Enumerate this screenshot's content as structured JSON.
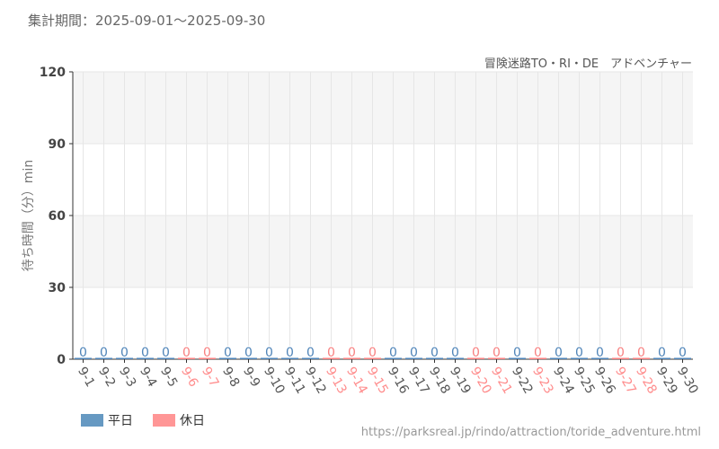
{
  "header": {
    "period": "集計期間：2025-09-01～2025-09-30",
    "subtitle": "冒険迷路TO・RI・DE　アドベンチャー"
  },
  "legend": [
    {
      "label": "平日",
      "color": "#6699c2"
    },
    {
      "label": "休日",
      "color": "#ff9696"
    }
  ],
  "source": "https://parksreal.jp/rindo/attraction/toride_adventure.html",
  "colors": {
    "weekday": "#4f84b8",
    "holiday": "#f88080",
    "weekday_label": "#555555",
    "holiday_label": "#ff8c8c"
  },
  "chart_data": {
    "type": "bar",
    "title": "",
    "xlabel": "",
    "ylabel": "待ち時間（分）min",
    "ylim": [
      0,
      120
    ],
    "yticks": [
      0,
      30,
      60,
      90,
      120
    ],
    "categories": [
      "9-1",
      "9-2",
      "9-3",
      "9-4",
      "9-5",
      "9-6",
      "9-7",
      "9-8",
      "9-9",
      "9-10",
      "9-11",
      "9-12",
      "9-13",
      "9-14",
      "9-15",
      "9-16",
      "9-17",
      "9-18",
      "9-19",
      "9-20",
      "9-21",
      "9-22",
      "9-23",
      "9-24",
      "9-25",
      "9-26",
      "9-27",
      "9-28",
      "9-29",
      "9-30"
    ],
    "values": [
      0,
      0,
      0,
      0,
      0,
      0,
      0,
      0,
      0,
      0,
      0,
      0,
      0,
      0,
      0,
      0,
      0,
      0,
      0,
      0,
      0,
      0,
      0,
      0,
      0,
      0,
      0,
      0,
      0,
      0
    ],
    "holiday": [
      false,
      false,
      false,
      false,
      false,
      true,
      true,
      false,
      false,
      false,
      false,
      false,
      true,
      true,
      true,
      false,
      false,
      false,
      false,
      true,
      true,
      false,
      true,
      false,
      false,
      false,
      true,
      true,
      false,
      false
    ],
    "legend_position": "bottom-left",
    "grid": true
  }
}
